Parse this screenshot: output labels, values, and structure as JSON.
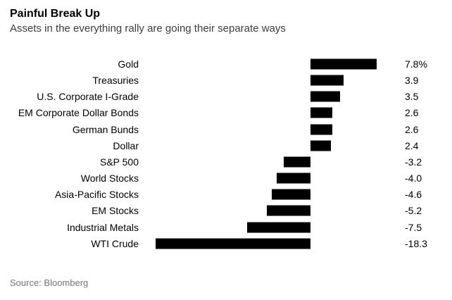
{
  "header": {
    "title": "Painful Break Up",
    "subtitle": "Assets in the everything rally are going their separate ways"
  },
  "chart_data": {
    "type": "bar",
    "orientation": "horizontal",
    "title": "Painful Break Up",
    "subtitle": "Assets in the everything rally are going their separate ways",
    "categories": [
      "Gold",
      "Treasuries",
      "U.S. Corporate I-Grade",
      "EM Corporate Dollar Bonds",
      "German Bunds",
      "Dollar",
      "S&P 500",
      "World Stocks",
      "Asia-Pacific Stocks",
      "EM Stocks",
      "Industrial Metals",
      "WTI Crude"
    ],
    "values": [
      7.8,
      3.9,
      3.5,
      2.6,
      2.6,
      2.4,
      -3.2,
      -4.0,
      -4.6,
      -5.2,
      -7.5,
      -18.3
    ],
    "value_labels": [
      "7.8%",
      "3.9",
      "3.5",
      "2.6",
      "2.6",
      "2.4",
      "-3.2",
      "-4.0",
      "-4.6",
      "-5.2",
      "-7.5",
      "-18.3"
    ],
    "unit": "%",
    "xlabel": "",
    "ylabel": "",
    "xlim": [
      -20,
      10
    ],
    "grid": false,
    "legend_position": "none",
    "bar_color": "#000000"
  },
  "footer": {
    "source": "Source: Bloomberg"
  },
  "colors": {
    "background": "#ffffff",
    "bar": "#000000",
    "title": "#000000",
    "subtitle": "#3c3c3c",
    "source": "#757575"
  }
}
